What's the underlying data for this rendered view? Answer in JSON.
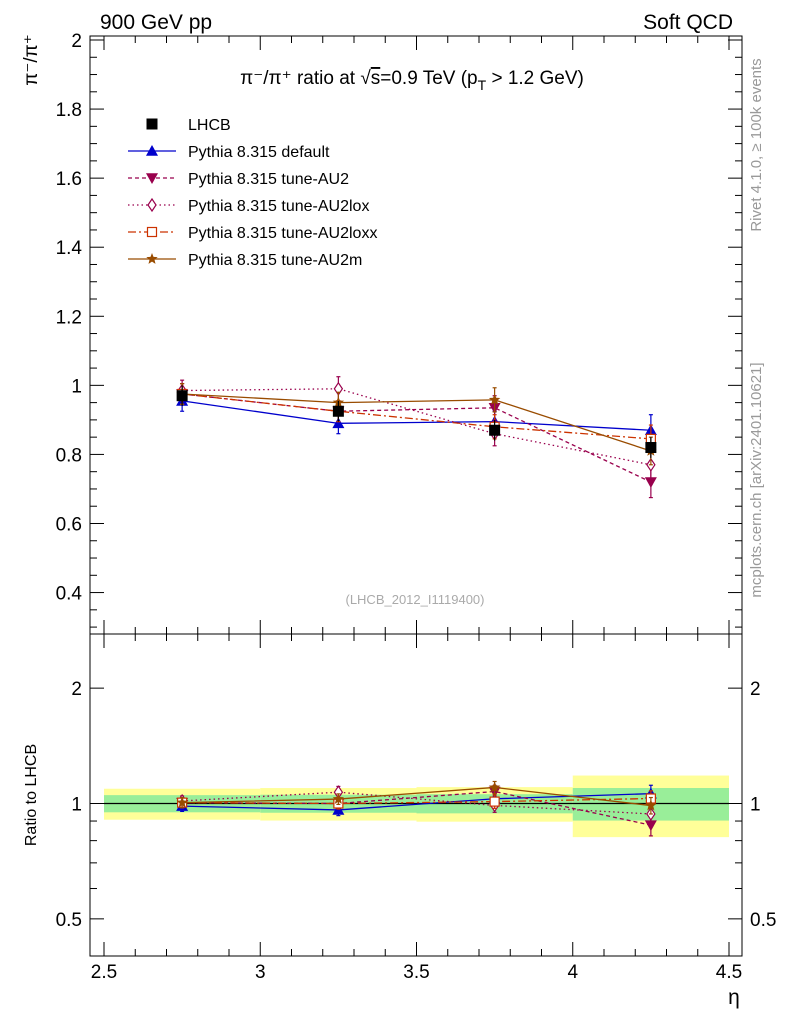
{
  "header": {
    "left": "900 GeV pp",
    "right": "Soft QCD"
  },
  "side_labels": {
    "rivet": "Rivet 4.1.0, ≥ 100k events",
    "mcplots": "mcplots.cern.ch [arXiv:2401.10621]"
  },
  "chart_data": {
    "type": "line",
    "title_parts": {
      "prefix": "π⁻/π⁺ ratio at √",
      "s": "s",
      "mid": "=0.9 TeV (p",
      "sub": "T",
      "suffix": " > 1.2 GeV)"
    },
    "analysis_id": "(LHCB_2012_I1119400)",
    "ylabel_top": "π⁻/π⁺",
    "ylabel_ratio": "Ratio to LHCB",
    "xlabel": "η",
    "xlim": [
      2.5,
      4.5
    ],
    "ylim": [
      0.28,
      2.0
    ],
    "ratio_ylim_log": [
      0.4,
      2.5
    ],
    "x_ticks": [
      "2.5",
      "3",
      "3.5",
      "4",
      "4.5"
    ],
    "y_ticks": [
      "0.4",
      "0.6",
      "0.8",
      "1",
      "1.2",
      "1.4",
      "1.6",
      "1.8",
      "2"
    ],
    "ratio_ticks": [
      "0.5",
      "1",
      "2"
    ],
    "bins": [
      [
        2.5,
        3.0
      ],
      [
        3.0,
        3.5
      ],
      [
        3.5,
        4.0
      ],
      [
        4.0,
        4.5
      ]
    ],
    "x": [
      2.75,
      3.25,
      3.75,
      4.25
    ],
    "data": {
      "name": "LHCB",
      "values": [
        0.97,
        0.925,
        0.87,
        0.82
      ],
      "errors": [
        0.03,
        0.03,
        0.03,
        0.03
      ],
      "band_stat": [
        0.025,
        0.025,
        0.025,
        0.04
      ],
      "band_total": [
        0.045,
        0.045,
        0.045,
        0.075
      ]
    },
    "series": [
      {
        "name": "Pythia 8.315 default",
        "color": "#0000cc",
        "dash": "",
        "marker": "triangle-up",
        "values": [
          0.955,
          0.89,
          0.895,
          0.87
        ],
        "errors": [
          0.03,
          0.03,
          0.03,
          0.045
        ]
      },
      {
        "name": "Pythia 8.315 tune-AU2",
        "color": "#99004d",
        "dash": "4,3",
        "marker": "triangle-down",
        "values": [
          0.975,
          0.925,
          0.935,
          0.72
        ],
        "errors": [
          0.03,
          0.03,
          0.035,
          0.045
        ]
      },
      {
        "name": "Pythia 8.315 tune-AU2lox",
        "color": "#99004d",
        "dash": "1.5,3",
        "marker": "diamond-open",
        "values": [
          0.985,
          0.99,
          0.86,
          0.77
        ],
        "errors": [
          0.03,
          0.035,
          0.035,
          0.04
        ]
      },
      {
        "name": "Pythia 8.315 tune-AU2loxx",
        "color": "#cc3300",
        "dash": "8,3,2,3",
        "marker": "square-open",
        "values": [
          0.975,
          0.925,
          0.88,
          0.845
        ],
        "errors": [
          0.03,
          0.03,
          0.035,
          0.04
        ]
      },
      {
        "name": "Pythia 8.315 tune-AU2m",
        "color": "#994c00",
        "dash": "",
        "marker": "star",
        "values": [
          0.975,
          0.95,
          0.958,
          0.81
        ],
        "errors": [
          0.03,
          0.03,
          0.035,
          0.04
        ]
      }
    ]
  }
}
